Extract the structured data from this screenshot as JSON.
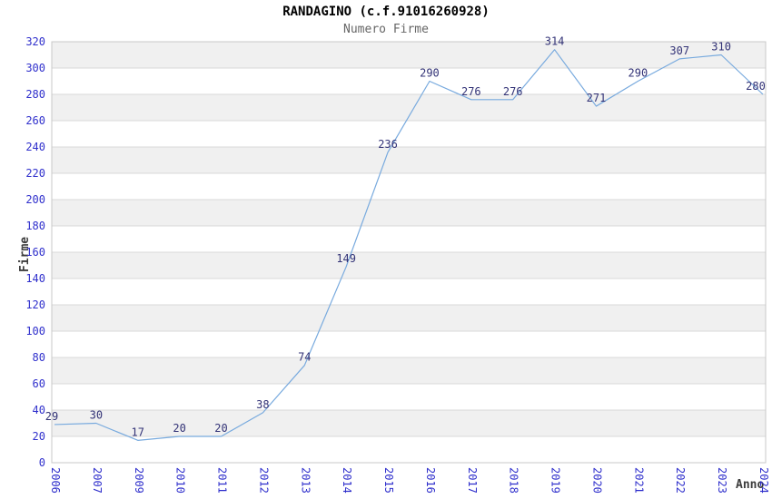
{
  "title": "RANDAGINO (c.f.91016260928)",
  "subtitle": "Numero Firme",
  "chart_data": {
    "type": "line",
    "title": "RANDAGINO (c.f.91016260928)",
    "subtitle": "Numero Firme",
    "xlabel": "Anno",
    "ylabel": "Firme",
    "categories": [
      "2006",
      "2007",
      "2009",
      "2010",
      "2011",
      "2012",
      "2013",
      "2014",
      "2015",
      "2016",
      "2017",
      "2018",
      "2019",
      "2020",
      "2021",
      "2022",
      "2023",
      "2024"
    ],
    "values": [
      29,
      30,
      17,
      20,
      20,
      38,
      74,
      149,
      236,
      290,
      276,
      276,
      314,
      271,
      290,
      307,
      310,
      280
    ],
    "ylim": [
      0,
      320
    ],
    "ytick_step": 20,
    "grid": "horizontal gridlines every 20 with alternating shaded bands",
    "legend_position": "none",
    "markers": false
  },
  "colors": {
    "line": "#78aade",
    "tick_label": "#3030cc",
    "data_label": "#333377",
    "band": "#f0f0f0",
    "band_alt": "#ffffff",
    "gridline": "#d8d8d8",
    "border": "#c8c8c8",
    "title": "#000000",
    "subtitle": "#666666",
    "axis_title": "#3c3c3c",
    "background": "#ffffff"
  }
}
